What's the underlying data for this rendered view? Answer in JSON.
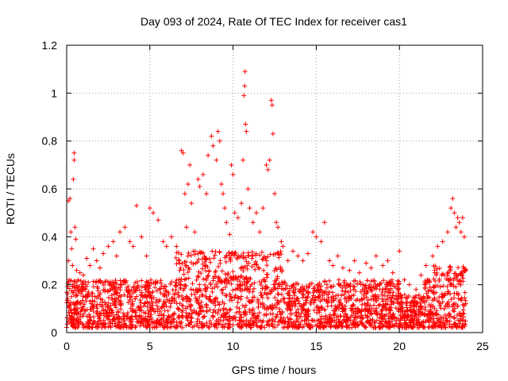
{
  "chart_data": {
    "type": "scatter",
    "title": "Day 093 of 2024, Rate Of TEC Index for receiver cas1",
    "xlabel": "GPS time / hours",
    "ylabel": "ROTI / TECUs",
    "xlim": [
      0,
      25
    ],
    "ylim": [
      0,
      1.2
    ],
    "xticks": [
      "0",
      "5",
      "10",
      "15",
      "20",
      "25"
    ],
    "yticks": [
      "0",
      "0.2",
      "0.4",
      "0.6",
      "0.8",
      "1",
      "1.2"
    ],
    "grid": true,
    "marker": "+",
    "color": "#ff0000",
    "series": [
      {
        "points": [
          [
            0.1,
            0.55
          ],
          [
            0.1,
            0.3
          ],
          [
            0.15,
            0.22
          ],
          [
            0.2,
            0.56
          ],
          [
            0.25,
            0.42
          ],
          [
            0.3,
            0.35
          ],
          [
            0.35,
            0.28
          ],
          [
            0.4,
            0.64
          ],
          [
            0.45,
            0.75
          ],
          [
            0.45,
            0.72
          ],
          [
            0.5,
            0.44
          ],
          [
            0.55,
            0.39
          ],
          [
            0.6,
            0.26
          ],
          [
            0.7,
            0.22
          ],
          [
            0.8,
            0.25
          ],
          [
            0.9,
            0.19
          ],
          [
            1.0,
            0.24
          ],
          [
            1.2,
            0.31
          ],
          [
            1.4,
            0.28
          ],
          [
            1.6,
            0.35
          ],
          [
            1.8,
            0.3
          ],
          [
            2.0,
            0.27
          ],
          [
            2.2,
            0.33
          ],
          [
            2.5,
            0.36
          ],
          [
            2.8,
            0.38
          ],
          [
            3.0,
            0.32
          ],
          [
            3.2,
            0.42
          ],
          [
            3.5,
            0.44
          ],
          [
            3.8,
            0.38
          ],
          [
            4.0,
            0.36
          ],
          [
            4.2,
            0.53
          ],
          [
            4.5,
            0.4
          ],
          [
            4.8,
            0.32
          ],
          [
            5.0,
            0.52
          ],
          [
            5.2,
            0.5
          ],
          [
            5.5,
            0.47
          ],
          [
            5.8,
            0.38
          ],
          [
            6.0,
            0.36
          ],
          [
            6.3,
            0.4
          ],
          [
            6.6,
            0.36
          ],
          [
            6.9,
            0.76
          ],
          [
            7.0,
            0.75
          ],
          [
            7.1,
            0.58
          ],
          [
            7.2,
            0.44
          ],
          [
            7.3,
            0.62
          ],
          [
            7.4,
            0.7
          ],
          [
            7.5,
            0.54
          ],
          [
            7.7,
            0.42
          ],
          [
            7.9,
            0.64
          ],
          [
            8.0,
            0.61
          ],
          [
            8.2,
            0.66
          ],
          [
            8.4,
            0.58
          ],
          [
            8.5,
            0.74
          ],
          [
            8.7,
            0.82
          ],
          [
            8.8,
            0.78
          ],
          [
            9.0,
            0.72
          ],
          [
            9.1,
            0.84
          ],
          [
            9.2,
            0.8
          ],
          [
            9.3,
            0.62
          ],
          [
            9.4,
            0.58
          ],
          [
            9.5,
            0.52
          ],
          [
            9.6,
            0.46
          ],
          [
            9.8,
            0.41
          ],
          [
            9.9,
            0.7
          ],
          [
            10.0,
            0.66
          ],
          [
            10.1,
            0.5
          ],
          [
            10.3,
            0.48
          ],
          [
            10.5,
            0.54
          ],
          [
            10.6,
            0.72
          ],
          [
            10.65,
            0.99
          ],
          [
            10.7,
            1.03
          ],
          [
            10.72,
            1.09
          ],
          [
            10.75,
            0.87
          ],
          [
            10.8,
            0.84
          ],
          [
            10.9,
            0.6
          ],
          [
            11.0,
            0.52
          ],
          [
            11.2,
            0.46
          ],
          [
            11.4,
            0.5
          ],
          [
            11.6,
            0.42
          ],
          [
            11.8,
            0.52
          ],
          [
            12.0,
            0.7
          ],
          [
            12.1,
            0.68
          ],
          [
            12.2,
            0.72
          ],
          [
            12.3,
            0.97
          ],
          [
            12.35,
            0.95
          ],
          [
            12.4,
            0.83
          ],
          [
            12.5,
            0.58
          ],
          [
            12.6,
            0.46
          ],
          [
            12.7,
            0.44
          ],
          [
            12.9,
            0.38
          ],
          [
            13.0,
            0.36
          ],
          [
            13.3,
            0.3
          ],
          [
            13.6,
            0.34
          ],
          [
            13.9,
            0.32
          ],
          [
            14.2,
            0.3
          ],
          [
            14.5,
            0.33
          ],
          [
            14.8,
            0.42
          ],
          [
            15.0,
            0.4
          ],
          [
            15.3,
            0.38
          ],
          [
            15.5,
            0.46
          ],
          [
            15.8,
            0.3
          ],
          [
            16.0,
            0.28
          ],
          [
            16.3,
            0.32
          ],
          [
            16.6,
            0.27
          ],
          [
            17.0,
            0.26
          ],
          [
            17.3,
            0.3
          ],
          [
            17.6,
            0.25
          ],
          [
            18.0,
            0.29
          ],
          [
            18.3,
            0.27
          ],
          [
            18.6,
            0.32
          ],
          [
            19.0,
            0.28
          ],
          [
            19.3,
            0.3
          ],
          [
            19.6,
            0.25
          ],
          [
            20.0,
            0.34
          ],
          [
            20.3,
            0.22
          ],
          [
            20.6,
            0.2
          ],
          [
            21.0,
            0.18
          ],
          [
            21.3,
            0.24
          ],
          [
            21.6,
            0.28
          ],
          [
            22.0,
            0.32
          ],
          [
            22.3,
            0.36
          ],
          [
            22.6,
            0.38
          ],
          [
            22.9,
            0.42
          ],
          [
            23.1,
            0.52
          ],
          [
            23.2,
            0.56
          ],
          [
            23.3,
            0.5
          ],
          [
            23.4,
            0.44
          ],
          [
            23.5,
            0.48
          ],
          [
            23.6,
            0.46
          ],
          [
            23.7,
            0.42
          ],
          [
            23.8,
            0.48
          ],
          [
            23.9,
            0.4
          ]
        ]
      }
    ]
  }
}
